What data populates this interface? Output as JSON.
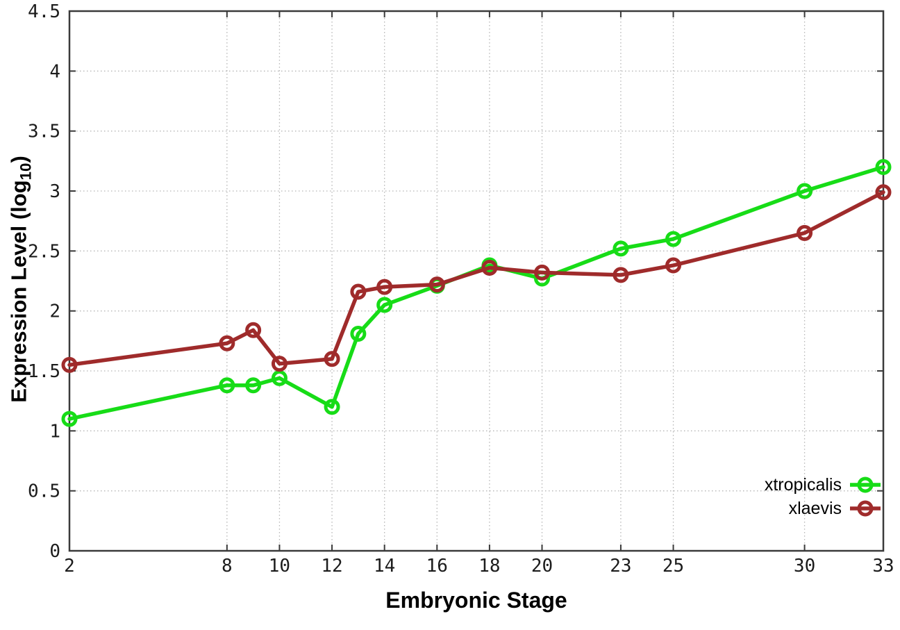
{
  "chart_data": {
    "type": "line",
    "title": "",
    "xlabel": "Embryonic Stage",
    "ylabel": {
      "prefix": "Expression Level (log",
      "sub": "10",
      "suffix": ")"
    },
    "xlim": [
      2,
      33
    ],
    "ylim": [
      0,
      4.5
    ],
    "xticks": [
      "2",
      "8",
      "10",
      "12",
      "14",
      "16",
      "18",
      "20",
      "23",
      "25",
      "30",
      "33"
    ],
    "yticks": [
      "0",
      "0.5",
      "1",
      "1.5",
      "2",
      "2.5",
      "3",
      "3.5",
      "4",
      "4.5"
    ],
    "grid": true,
    "legend_position": "inside bottom-right",
    "series": [
      {
        "name": "xtropicalis",
        "color": "#17dc17",
        "points": [
          [
            2,
            1.1
          ],
          [
            8,
            1.38
          ],
          [
            9,
            1.38
          ],
          [
            10,
            1.44
          ],
          [
            12,
            1.2
          ],
          [
            13,
            1.81
          ],
          [
            14,
            2.05
          ],
          [
            16,
            2.21
          ],
          [
            18,
            2.38
          ],
          [
            20,
            2.27
          ],
          [
            23,
            2.52
          ],
          [
            25,
            2.6
          ],
          [
            30,
            3.0
          ],
          [
            33,
            3.2
          ]
        ]
      },
      {
        "name": "xlaevis",
        "color": "#9f2b2b",
        "points": [
          [
            2,
            1.55
          ],
          [
            8,
            1.73
          ],
          [
            9,
            1.84
          ],
          [
            10,
            1.56
          ],
          [
            12,
            1.6
          ],
          [
            13,
            2.16
          ],
          [
            14,
            2.2
          ],
          [
            16,
            2.22
          ],
          [
            18,
            2.36
          ],
          [
            20,
            2.32
          ],
          [
            23,
            2.3
          ],
          [
            25,
            2.38
          ],
          [
            30,
            2.65
          ],
          [
            33,
            2.99
          ]
        ]
      }
    ]
  },
  "colors": {
    "background": "#ffffff",
    "axis": "#3a3a3a",
    "grid": "#b5b5b5",
    "tick_label": "#1c1c1c"
  }
}
